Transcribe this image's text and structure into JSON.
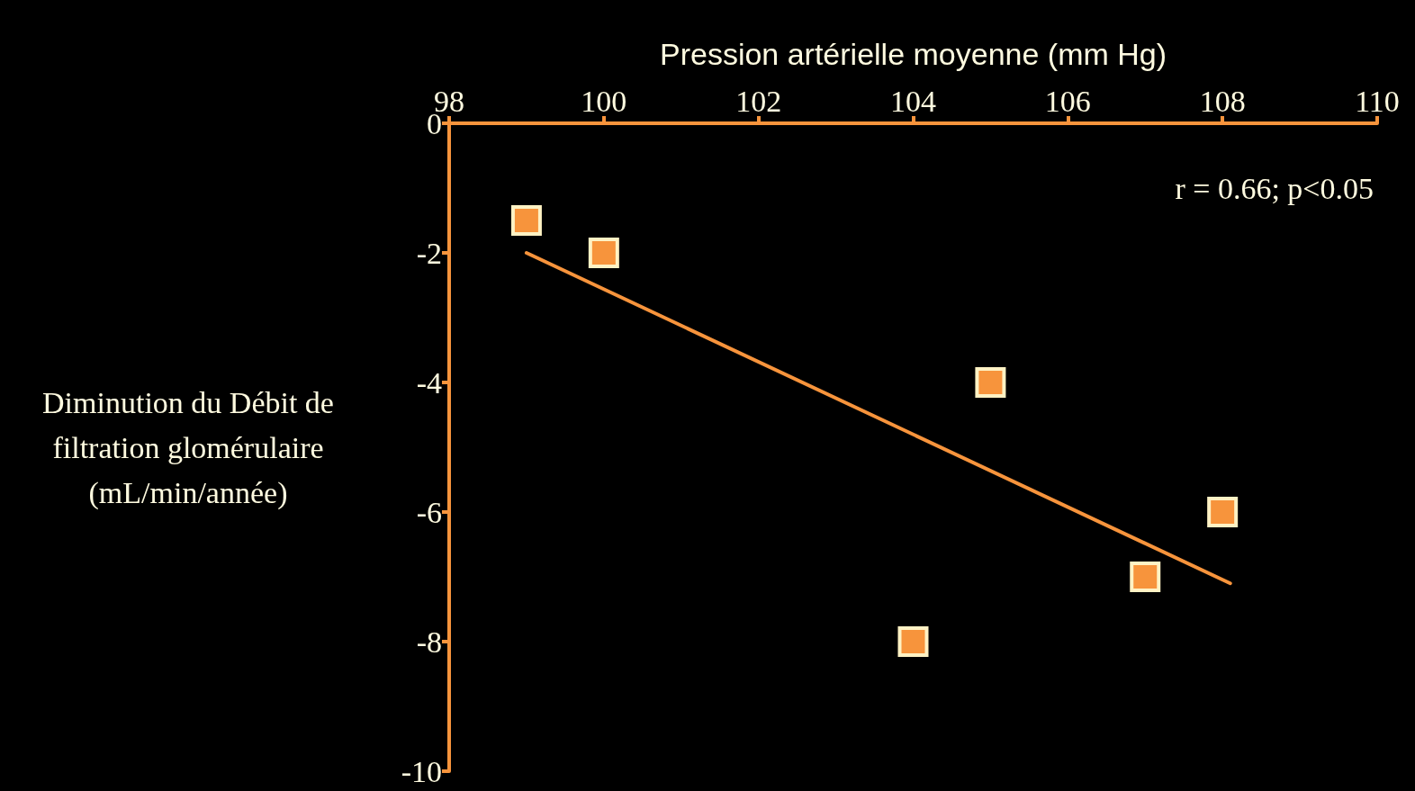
{
  "chart_data": {
    "type": "scatter",
    "xlabel": "Pression artérielle moyenne (mm Hg)",
    "ylabel": "Diminution du Débit de\nfiltration glomérulaire\n(mL/min/année)",
    "xlim": [
      98,
      110
    ],
    "xticks": [
      98,
      100,
      102,
      104,
      106,
      108,
      110
    ],
    "ylim": [
      -10,
      0
    ],
    "yticks": [
      -10,
      -8,
      -6,
      -4,
      -2,
      0
    ],
    "grid": false,
    "annotations": [
      "r = 0.66; p<0.05"
    ],
    "series": [
      {
        "color": "#f7943c",
        "marker": "square",
        "x": [
          99,
          100,
          105,
          104,
          107,
          108
        ],
        "values": [
          -1.5,
          -2,
          -4,
          -8,
          -7,
          -6
        ]
      },
      {
        "type": "line",
        "color": "#f7943c",
        "marker": "none",
        "line_style": "solid",
        "x": [
          99,
          108.1
        ],
        "values": [
          -2,
          -7.1
        ]
      }
    ]
  }
}
